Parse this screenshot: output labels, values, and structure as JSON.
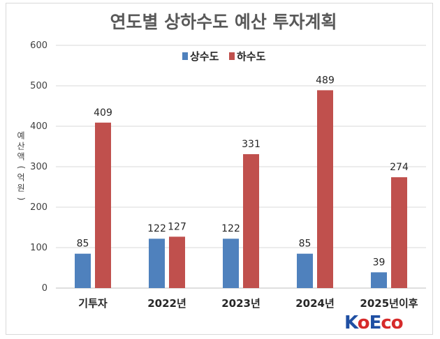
{
  "chart_data": {
    "type": "bar",
    "title": "연도별 상하수도 예산 투자계획",
    "ylabel": "예산액(억원)",
    "ylim": [
      0,
      600
    ],
    "yticks": [
      0,
      100,
      200,
      300,
      400,
      500,
      600
    ],
    "categories": [
      "기투자",
      "2022년",
      "2023년",
      "2024년",
      "2025년이후"
    ],
    "series": [
      {
        "name": "상수도",
        "values": [
          85,
          122,
          122,
          85,
          39
        ],
        "color": "#4f81bd"
      },
      {
        "name": "하수도",
        "values": [
          409,
          127,
          331,
          489,
          274
        ],
        "color": "#c0504d"
      }
    ],
    "legend": "top-center",
    "grid": true
  },
  "logo": {
    "parts": [
      "K",
      "o",
      "E",
      "co"
    ],
    "colors": [
      "#1f4fa3",
      "#d62b2b",
      "#1f4fa3",
      "#d62b2b"
    ]
  }
}
